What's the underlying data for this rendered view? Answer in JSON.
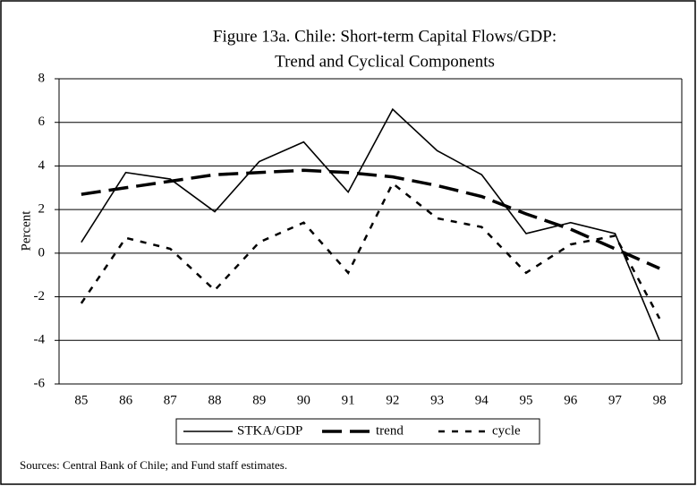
{
  "chart_data": {
    "type": "line",
    "title": "Figure 13a. Chile: Short-term Capital Flows/GDP:",
    "subtitle": "Trend and Cyclical Components",
    "y_label": "Percent",
    "source": "Sources:  Central Bank of Chile; and Fund staff estimates.",
    "categories": [
      "85",
      "86",
      "87",
      "88",
      "89",
      "90",
      "91",
      "92",
      "93",
      "94",
      "95",
      "96",
      "97",
      "98"
    ],
    "series": [
      {
        "name": "STKA/GDP",
        "color": "#000000",
        "style": "solid",
        "values": [
          0.5,
          3.7,
          3.4,
          1.9,
          4.2,
          5.1,
          2.8,
          6.6,
          4.7,
          3.6,
          0.9,
          1.4,
          0.9,
          -4.0
        ]
      },
      {
        "name": "trend",
        "color": "#000000",
        "style": "long-dash",
        "values": [
          2.7,
          3.0,
          3.3,
          3.6,
          3.7,
          3.8,
          3.7,
          3.5,
          3.1,
          2.6,
          1.8,
          1.1,
          0.2,
          -0.7
        ]
      },
      {
        "name": "cycle",
        "color": "#000000",
        "style": "short-dash",
        "values": [
          -2.3,
          0.7,
          0.2,
          -1.7,
          0.5,
          1.4,
          -0.9,
          3.2,
          1.6,
          1.2,
          -0.9,
          0.4,
          0.8,
          -3.0
        ]
      }
    ],
    "ylim": [
      -6,
      8
    ],
    "yticks": [
      -6,
      -4,
      -2,
      0,
      2,
      4,
      6,
      8
    ],
    "grid": true
  }
}
